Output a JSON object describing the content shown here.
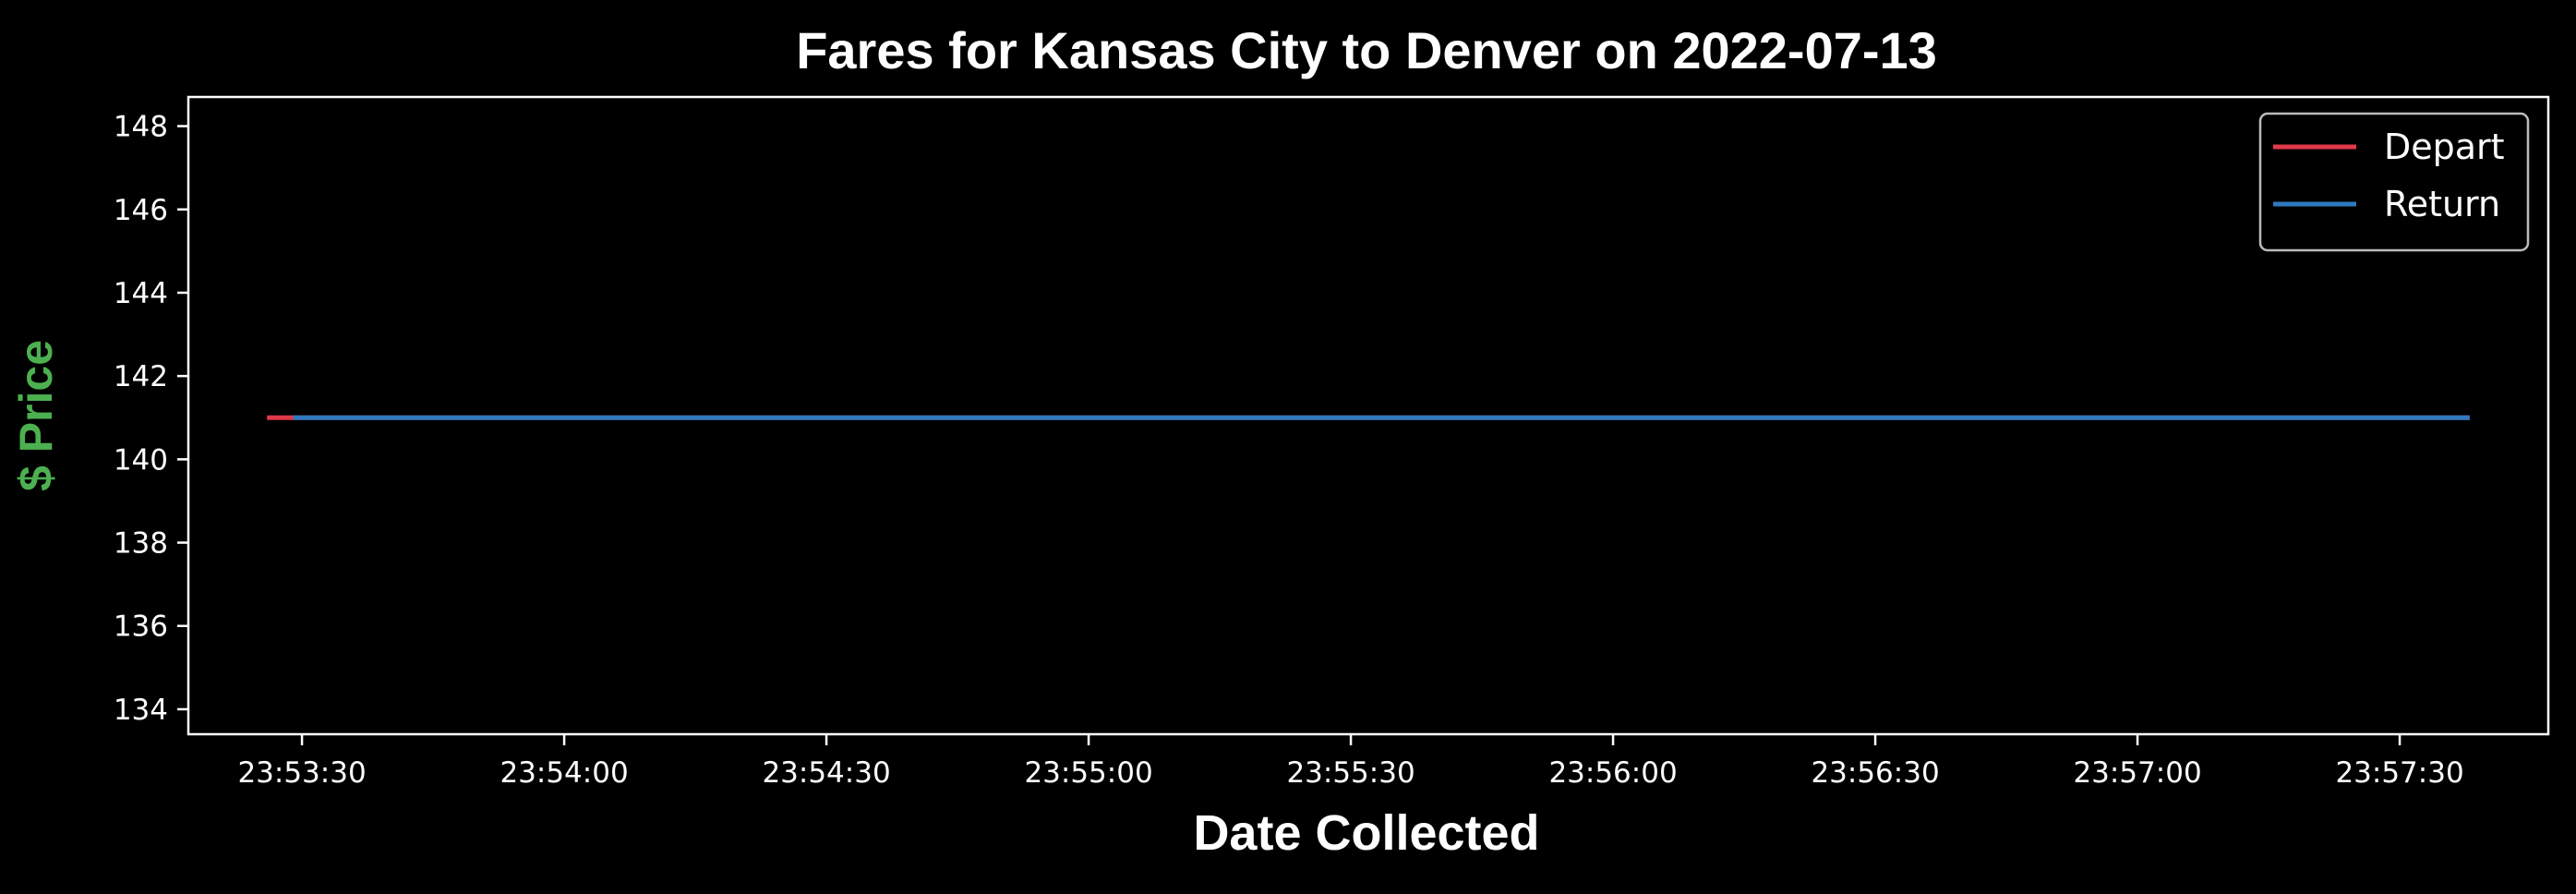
{
  "chart_data": {
    "type": "line",
    "title": "Fares for Kansas City to Denver on 2022-07-13",
    "xlabel": "Date Collected",
    "ylabel": "$ Price",
    "x_unit": "time (HH:MM:SS)",
    "xlim": [
      "23:53:17",
      "23:57:47"
    ],
    "ylim": [
      133.4,
      148.7
    ],
    "xticks": [
      "23:53:30",
      "23:54:00",
      "23:54:30",
      "23:55:00",
      "23:55:30",
      "23:56:00",
      "23:56:30",
      "23:57:00",
      "23:57:30"
    ],
    "yticks": [
      134,
      136,
      138,
      140,
      142,
      144,
      146,
      148
    ],
    "grid": false,
    "legend_position": "top-right",
    "series": [
      {
        "name": "Depart",
        "color": "#e0394a",
        "x": [
          "23:53:26",
          "23:57:38"
        ],
        "y": [
          141,
          141
        ]
      },
      {
        "name": "Return",
        "color": "#2f79bf",
        "x": [
          "23:53:29",
          "23:57:38"
        ],
        "y": [
          141,
          141
        ]
      }
    ],
    "colors": {
      "background": "#000000",
      "axes": "#ffffff",
      "ylabel": "#4cb050",
      "legend_frame": "#bbbbbb"
    }
  }
}
